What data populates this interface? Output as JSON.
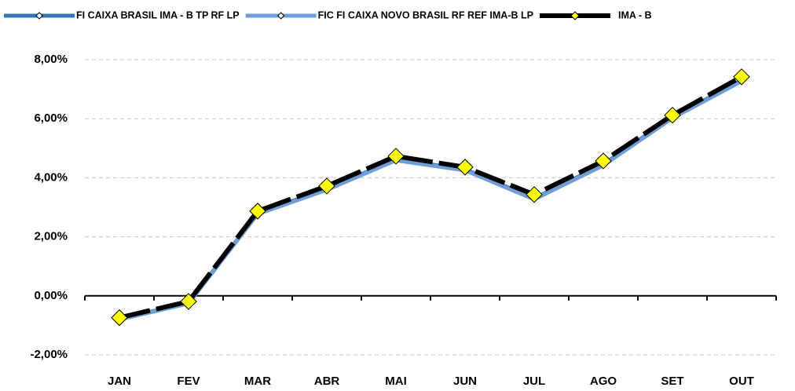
{
  "chart_data": {
    "type": "line",
    "categories": [
      "JAN",
      "FEV",
      "MAR",
      "ABR",
      "MAI",
      "JUN",
      "JUL",
      "AGO",
      "SET",
      "OUT"
    ],
    "series": [
      {
        "name": "FI CAIXA BRASIL IMA - B TP RF LP",
        "color": "#2e75b6",
        "line_style": "solid",
        "marker": "small-diamond",
        "values": [
          -0.78,
          -0.24,
          2.8,
          3.62,
          4.62,
          4.28,
          3.3,
          4.45,
          6.05,
          7.3
        ]
      },
      {
        "name": "FIC FI CAIXA NOVO BRASIL RF REF IMA-B LP",
        "color": "#6f9fd8",
        "line_style": "solid",
        "marker": "small-diamond",
        "values": [
          -0.8,
          -0.26,
          2.77,
          3.59,
          4.59,
          4.25,
          3.27,
          4.42,
          6.02,
          7.27
        ]
      },
      {
        "name": "IMA - B",
        "color": "#000000",
        "line_style": "dashed",
        "marker": "yellow-diamond",
        "values": [
          -0.74,
          -0.19,
          2.87,
          3.72,
          4.73,
          4.36,
          3.43,
          4.57,
          6.12,
          7.42
        ]
      }
    ],
    "ylim": [
      -2,
      8
    ],
    "yticks": [
      {
        "value": -2,
        "label": "-2,00%"
      },
      {
        "value": 0,
        "label": "0,00%"
      },
      {
        "value": 2,
        "label": "2,00%"
      },
      {
        "value": 4,
        "label": "4,00%"
      },
      {
        "value": 6,
        "label": "6,00%"
      },
      {
        "value": 8,
        "label": "8,00%"
      }
    ],
    "grid": true,
    "legend": "top"
  }
}
